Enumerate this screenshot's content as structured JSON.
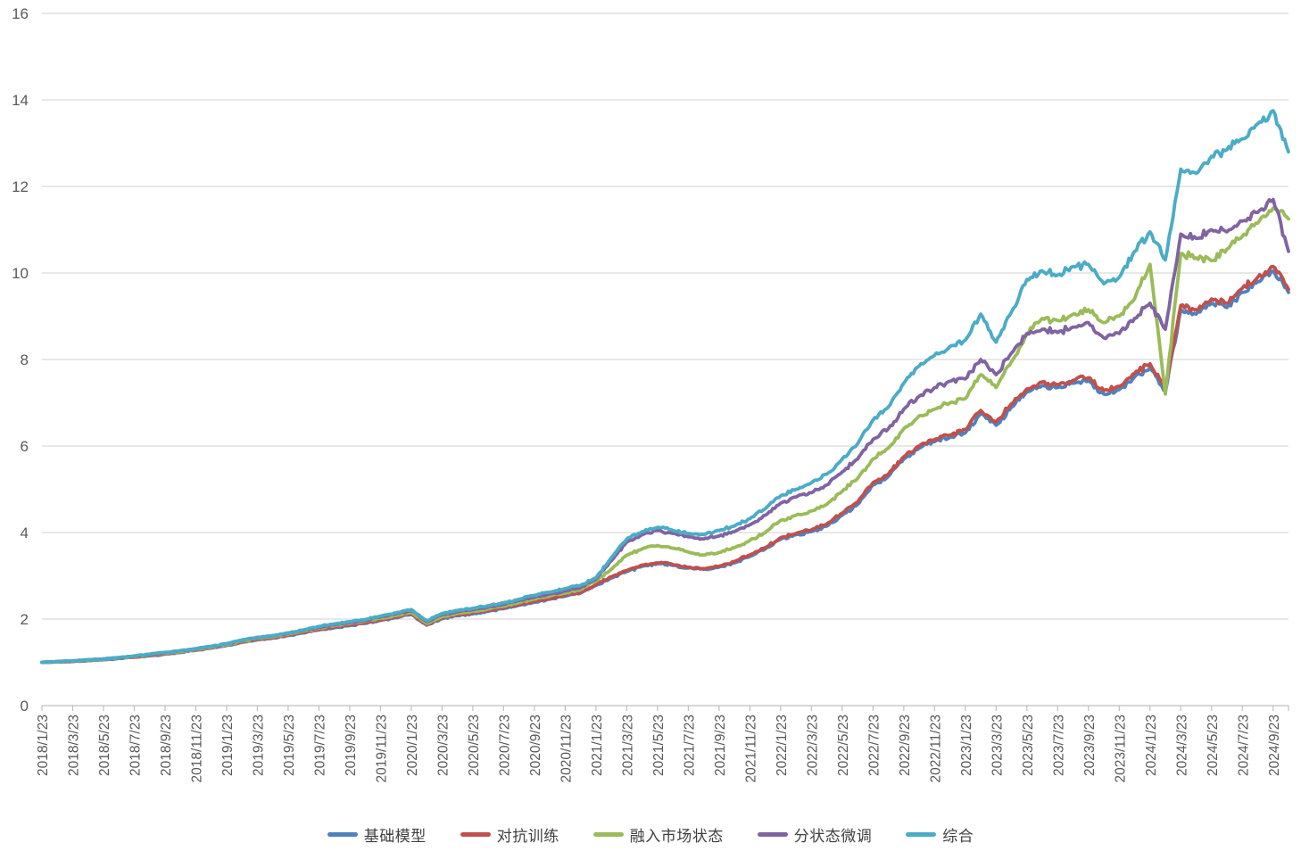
{
  "chart_data": {
    "type": "line",
    "title": "",
    "xlabel": "",
    "ylabel": "",
    "ylim": [
      0,
      16
    ],
    "y_ticks": [
      0,
      2,
      4,
      6,
      8,
      10,
      12,
      14,
      16
    ],
    "grid": true,
    "legend_position": "bottom",
    "x_frequency": "monthly",
    "x_range_start": "2018/1/23",
    "x_range_end": "2024/10",
    "x_tick_labels": [
      "2018/1/23",
      "2018/3/23",
      "2018/5/23",
      "2018/7/23",
      "2018/9/23",
      "2018/11/23",
      "2019/1/23",
      "2019/3/23",
      "2019/5/23",
      "2019/7/23",
      "2019/9/23",
      "2019/11/23",
      "2020/1/23",
      "2020/3/23",
      "2020/5/23",
      "2020/7/23",
      "2020/9/23",
      "2020/11/23",
      "2021/1/23",
      "2021/3/23",
      "2021/5/23",
      "2021/7/23",
      "2021/9/23",
      "2021/11/23",
      "2022/1/23",
      "2022/3/23",
      "2022/5/23",
      "2022/7/23",
      "2022/9/23",
      "2022/11/23",
      "2023/1/23",
      "2023/3/23",
      "2023/5/23",
      "2023/7/23",
      "2023/9/23",
      "2023/11/23",
      "2024/1/23",
      "2024/3/23",
      "2024/5/23",
      "2024/7/23",
      "2024/9/23"
    ],
    "series": [
      {
        "name": "基础模型",
        "color": "#4F81BD",
        "values": [
          1.0,
          1.01,
          1.02,
          1.04,
          1.06,
          1.09,
          1.12,
          1.15,
          1.19,
          1.23,
          1.28,
          1.33,
          1.39,
          1.46,
          1.52,
          1.56,
          1.62,
          1.68,
          1.75,
          1.8,
          1.85,
          1.9,
          1.97,
          2.03,
          2.11,
          1.86,
          2.01,
          2.08,
          2.12,
          2.18,
          2.24,
          2.32,
          2.39,
          2.46,
          2.53,
          2.6,
          2.78,
          2.95,
          3.1,
          3.22,
          3.28,
          3.24,
          3.18,
          3.15,
          3.2,
          3.3,
          3.45,
          3.62,
          3.85,
          3.95,
          4.02,
          4.15,
          4.4,
          4.65,
          5.1,
          5.3,
          5.7,
          5.95,
          6.1,
          6.2,
          6.3,
          6.75,
          6.48,
          6.9,
          7.25,
          7.4,
          7.35,
          7.45,
          7.5,
          7.2,
          7.3,
          7.6,
          7.8,
          7.25,
          9.15,
          9.05,
          9.3,
          9.2,
          9.55,
          9.8,
          10.05,
          9.55
        ]
      },
      {
        "name": "对抗训练",
        "color": "#C0504D",
        "values": [
          1.0,
          1.01,
          1.02,
          1.05,
          1.07,
          1.1,
          1.12,
          1.16,
          1.2,
          1.24,
          1.29,
          1.34,
          1.4,
          1.47,
          1.53,
          1.57,
          1.63,
          1.7,
          1.76,
          1.82,
          1.87,
          1.92,
          1.98,
          2.05,
          2.13,
          1.87,
          2.03,
          2.1,
          2.14,
          2.2,
          2.26,
          2.34,
          2.41,
          2.48,
          2.55,
          2.62,
          2.8,
          2.98,
          3.12,
          3.25,
          3.3,
          3.26,
          3.2,
          3.17,
          3.22,
          3.33,
          3.48,
          3.65,
          3.88,
          3.98,
          4.06,
          4.2,
          4.45,
          4.7,
          5.15,
          5.35,
          5.75,
          6.0,
          6.15,
          6.25,
          6.38,
          6.82,
          6.55,
          6.98,
          7.32,
          7.48,
          7.42,
          7.52,
          7.58,
          7.28,
          7.38,
          7.68,
          7.9,
          7.35,
          9.25,
          9.15,
          9.4,
          9.3,
          9.65,
          9.9,
          10.15,
          9.62
        ]
      },
      {
        "name": "融入市场状态",
        "color": "#9BBB59",
        "values": [
          1.0,
          1.01,
          1.03,
          1.05,
          1.07,
          1.1,
          1.13,
          1.17,
          1.21,
          1.25,
          1.3,
          1.35,
          1.41,
          1.49,
          1.55,
          1.59,
          1.65,
          1.72,
          1.79,
          1.85,
          1.9,
          1.95,
          2.02,
          2.08,
          2.16,
          1.9,
          2.06,
          2.13,
          2.18,
          2.24,
          2.3,
          2.38,
          2.46,
          2.53,
          2.6,
          2.68,
          2.88,
          3.15,
          3.48,
          3.62,
          3.7,
          3.64,
          3.55,
          3.48,
          3.54,
          3.65,
          3.82,
          4.0,
          4.28,
          4.4,
          4.5,
          4.65,
          4.95,
          5.25,
          5.7,
          5.95,
          6.4,
          6.7,
          6.85,
          7.0,
          7.1,
          7.65,
          7.35,
          7.95,
          8.6,
          8.95,
          8.9,
          9.05,
          9.15,
          8.85,
          9.0,
          9.4,
          10.2,
          7.2,
          10.45,
          10.35,
          10.28,
          10.55,
          10.85,
          11.15,
          11.5,
          11.25
        ]
      },
      {
        "name": "分状态微调",
        "color": "#8064A2",
        "values": [
          1.0,
          1.02,
          1.03,
          1.06,
          1.08,
          1.11,
          1.14,
          1.18,
          1.22,
          1.27,
          1.31,
          1.37,
          1.43,
          1.51,
          1.57,
          1.61,
          1.67,
          1.74,
          1.81,
          1.87,
          1.92,
          1.97,
          2.05,
          2.12,
          2.2,
          1.94,
          2.1,
          2.17,
          2.22,
          2.28,
          2.34,
          2.43,
          2.51,
          2.58,
          2.65,
          2.73,
          2.92,
          3.35,
          3.78,
          3.95,
          4.05,
          3.98,
          3.9,
          3.85,
          3.92,
          4.02,
          4.18,
          4.4,
          4.68,
          4.82,
          4.92,
          5.1,
          5.4,
          5.7,
          6.15,
          6.4,
          6.85,
          7.15,
          7.35,
          7.5,
          7.55,
          8.0,
          7.65,
          8.15,
          8.6,
          8.7,
          8.62,
          8.75,
          8.85,
          8.5,
          8.6,
          8.95,
          9.3,
          8.7,
          10.9,
          10.8,
          11.0,
          10.95,
          11.2,
          11.4,
          11.7,
          10.5
        ]
      },
      {
        "name": "综合",
        "color": "#4BACC6",
        "values": [
          1.0,
          1.02,
          1.03,
          1.06,
          1.08,
          1.11,
          1.15,
          1.19,
          1.23,
          1.27,
          1.32,
          1.37,
          1.43,
          1.52,
          1.58,
          1.62,
          1.68,
          1.75,
          1.83,
          1.89,
          1.94,
          1.99,
          2.07,
          2.14,
          2.22,
          1.96,
          2.13,
          2.2,
          2.25,
          2.31,
          2.38,
          2.46,
          2.55,
          2.62,
          2.7,
          2.78,
          2.95,
          3.42,
          3.85,
          4.02,
          4.12,
          4.05,
          3.98,
          3.95,
          4.05,
          4.15,
          4.32,
          4.55,
          4.85,
          5.0,
          5.15,
          5.35,
          5.7,
          6.05,
          6.6,
          6.9,
          7.45,
          7.85,
          8.1,
          8.3,
          8.45,
          9.05,
          8.4,
          9.1,
          9.85,
          10.05,
          9.95,
          10.15,
          10.2,
          9.75,
          9.9,
          10.5,
          10.95,
          10.3,
          12.4,
          12.3,
          12.7,
          12.85,
          13.1,
          13.45,
          13.75,
          12.8
        ]
      }
    ]
  },
  "style": {
    "grid_color": "#D9D9D9",
    "axis_color": "#BFBFBF",
    "tick_label_color": "#595959",
    "legend_text_color": "#404040",
    "background": "#FFFFFF"
  }
}
